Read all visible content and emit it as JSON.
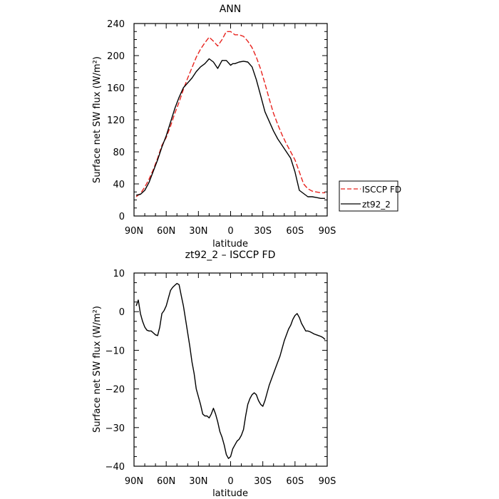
{
  "chart_data": [
    {
      "type": "line",
      "title": "ANN",
      "xlabel": "latitude",
      "ylabel": "Surface net SW flux (W/m²)",
      "xlim": [
        90,
        -90
      ],
      "ylim": [
        0,
        240
      ],
      "x_ticks": [
        {
          "value": 90,
          "label": "90N"
        },
        {
          "value": 60,
          "label": "60N"
        },
        {
          "value": 30,
          "label": "30N"
        },
        {
          "value": 0,
          "label": "0"
        },
        {
          "value": -30,
          "label": "30S"
        },
        {
          "value": -60,
          "label": "60S"
        },
        {
          "value": -90,
          "label": "90S"
        }
      ],
      "y_ticks": [
        0,
        40,
        80,
        120,
        160,
        200,
        240
      ],
      "grid": false,
      "legend_position": "right",
      "series": [
        {
          "name": "ISCCP FD",
          "color": "#e8231e",
          "dash": "dashed",
          "x": [
            88,
            84,
            80,
            76,
            72,
            68,
            64,
            60,
            56,
            52,
            48,
            44,
            40,
            36,
            32,
            28,
            24,
            20,
            16,
            12,
            8,
            4,
            0,
            -2,
            -4,
            -8,
            -12,
            -16,
            -20,
            -24,
            -28,
            -32,
            -36,
            -40,
            -44,
            -48,
            -52,
            -56,
            -60,
            -64,
            -68,
            -72,
            -76,
            -80,
            -84,
            -88
          ],
          "y": [
            24,
            28,
            36,
            46,
            58,
            72,
            88,
            98,
            112,
            128,
            142,
            158,
            172,
            185,
            198,
            208,
            216,
            223,
            218,
            212,
            220,
            230,
            230,
            228,
            226,
            226,
            224,
            218,
            210,
            198,
            183,
            165,
            146,
            128,
            114,
            101,
            90,
            80,
            70,
            55,
            40,
            34,
            31,
            30,
            29,
            29
          ]
        },
        {
          "name": "zt92_2",
          "color": "#000000",
          "dash": "solid",
          "x": [
            88,
            84,
            80,
            76,
            72,
            68,
            64,
            60,
            56,
            52,
            48,
            44,
            40,
            36,
            32,
            28,
            24,
            20,
            16,
            12,
            8,
            4,
            0,
            -2,
            -4,
            -8,
            -12,
            -16,
            -20,
            -24,
            -28,
            -32,
            -36,
            -40,
            -44,
            -48,
            -52,
            -56,
            -60,
            -64,
            -68,
            -72,
            -76,
            -80,
            -84,
            -88
          ],
          "y": [
            26,
            27,
            32,
            42,
            56,
            70,
            86,
            100,
            117,
            134,
            148,
            160,
            166,
            172,
            180,
            186,
            190,
            196,
            192,
            184,
            194,
            194,
            188,
            190,
            190,
            192,
            193,
            192,
            186,
            170,
            150,
            130,
            118,
            106,
            96,
            88,
            80,
            72,
            55,
            32,
            28,
            24,
            24,
            23,
            22,
            22
          ]
        }
      ]
    },
    {
      "type": "line",
      "title": "zt92_2 – ISCCP FD",
      "xlabel": "latitude",
      "ylabel": "Surface net SW flux (W/m²)",
      "xlim": [
        90,
        -90
      ],
      "ylim": [
        -40,
        10
      ],
      "x_ticks": [
        {
          "value": 90,
          "label": "90N"
        },
        {
          "value": 60,
          "label": "60N"
        },
        {
          "value": 30,
          "label": "30N"
        },
        {
          "value": 0,
          "label": "0"
        },
        {
          "value": -30,
          "label": "30S"
        },
        {
          "value": -60,
          "label": "60S"
        },
        {
          "value": -90,
          "label": "90S"
        }
      ],
      "y_ticks": [
        10,
        0,
        -10,
        -20,
        -30,
        -40
      ],
      "grid": false,
      "series": [
        {
          "color": "#000000",
          "dash": "solid",
          "x": [
            88,
            86,
            84,
            82,
            80,
            78,
            76,
            74,
            72,
            70,
            68,
            66,
            64,
            62,
            60,
            58,
            56,
            54,
            52,
            50,
            48,
            46,
            44,
            42,
            40,
            38,
            36,
            34,
            32,
            30,
            28,
            26,
            24,
            22,
            20,
            18,
            16,
            14,
            12,
            10,
            8,
            6,
            4,
            2,
            0,
            -2,
            -4,
            -6,
            -8,
            -10,
            -12,
            -14,
            -16,
            -18,
            -20,
            -22,
            -24,
            -26,
            -28,
            -30,
            -32,
            -34,
            -36,
            -38,
            -40,
            -42,
            -44,
            -46,
            -48,
            -50,
            -52,
            -54,
            -56,
            -58,
            -60,
            -62,
            -64,
            -66,
            -68,
            -70,
            -72,
            -74,
            -76,
            -78,
            -80,
            -82,
            -84,
            -86,
            -88
          ],
          "y": [
            1.5,
            3,
            -0.5,
            -2.5,
            -4,
            -4.8,
            -5,
            -5,
            -5.5,
            -6,
            -6.2,
            -4,
            -0.5,
            0.3,
            1.5,
            3.5,
            5.5,
            6.3,
            6.8,
            7.3,
            7,
            4.2,
            1.5,
            -2,
            -5.5,
            -9,
            -13,
            -16,
            -20,
            -22,
            -24,
            -26.5,
            -27,
            -27,
            -27.5,
            -26.5,
            -25,
            -26.5,
            -28.5,
            -31,
            -32.5,
            -34.5,
            -37,
            -38,
            -37.5,
            -35.5,
            -34.5,
            -33.5,
            -33,
            -32,
            -30.5,
            -27,
            -24,
            -22.5,
            -21.5,
            -21,
            -21.5,
            -23,
            -24,
            -24.5,
            -23,
            -21,
            -19,
            -17.5,
            -16,
            -14.5,
            -13,
            -11.5,
            -9.5,
            -7.5,
            -6,
            -4.5,
            -3.5,
            -2,
            -1,
            -0.5,
            -1.5,
            -3,
            -4,
            -5,
            -5,
            -5.2,
            -5.5,
            -5.8,
            -6,
            -6.2,
            -6.4,
            -6.7,
            -7.2
          ]
        }
      ]
    }
  ]
}
